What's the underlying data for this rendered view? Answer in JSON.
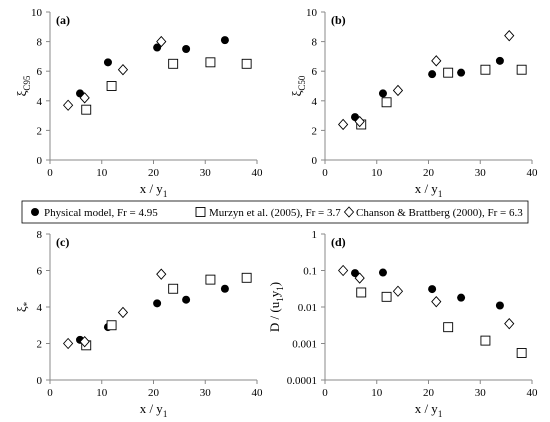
{
  "legend": {
    "items": [
      {
        "label": "Physical model, Fr = 4.95",
        "marker": "circle"
      },
      {
        "label": "Murzyn et al. (2005), Fr = 3.7",
        "marker": "square"
      },
      {
        "label": "Chanson & Brattberg (2000), Fr = 6.3",
        "marker": "diamond"
      }
    ]
  },
  "colors": {
    "physical": "#000000",
    "outline": "#000000",
    "axis": "#888888"
  },
  "chart_data": [
    {
      "id": "a",
      "panel_label": "(a)",
      "type": "scatter",
      "xlabel": "x / y",
      "xlabel_sub": "1",
      "ylabel": "ξ",
      "ylabel_sub": "C95",
      "xlim": [
        0,
        40
      ],
      "ylim": [
        0,
        10
      ],
      "yscale": "linear",
      "xticks": [
        "0",
        "10",
        "20",
        "30",
        "40"
      ],
      "yticks": [
        "0",
        "2",
        "4",
        "6",
        "8",
        "10"
      ],
      "series": [
        {
          "name": "Physical model, Fr = 4.95",
          "marker": "circle",
          "points": [
            [
              5.8,
              4.5
            ],
            [
              11.2,
              6.6
            ],
            [
              20.7,
              7.6
            ],
            [
              26.3,
              7.5
            ],
            [
              33.8,
              8.1
            ]
          ]
        },
        {
          "name": "Murzyn et al. (2005), Fr = 3.7",
          "marker": "square",
          "points": [
            [
              7,
              3.4
            ],
            [
              11.9,
              5.0
            ],
            [
              23.8,
              6.5
            ],
            [
              31,
              6.6
            ],
            [
              38,
              6.5
            ]
          ]
        },
        {
          "name": "Chanson & Brattberg (2000), Fr = 6.3",
          "marker": "diamond",
          "points": [
            [
              3.5,
              3.7
            ],
            [
              6.7,
              4.2
            ],
            [
              14.1,
              6.1
            ],
            [
              21.5,
              8.0
            ]
          ]
        }
      ]
    },
    {
      "id": "b",
      "panel_label": "(b)",
      "type": "scatter",
      "xlabel": "x / y",
      "xlabel_sub": "1",
      "ylabel": "ξ",
      "ylabel_sub": "C50",
      "xlim": [
        0,
        40
      ],
      "ylim": [
        0,
        10
      ],
      "yscale": "linear",
      "xticks": [
        "0",
        "10",
        "20",
        "30",
        "40"
      ],
      "yticks": [
        "0",
        "2",
        "4",
        "6",
        "8",
        "10"
      ],
      "series": [
        {
          "name": "Physical model, Fr = 4.95",
          "marker": "circle",
          "points": [
            [
              5.8,
              2.9
            ],
            [
              11.2,
              4.5
            ],
            [
              20.7,
              5.8
            ],
            [
              26.3,
              5.9
            ],
            [
              33.8,
              6.7
            ]
          ]
        },
        {
          "name": "Murzyn et al. (2005), Fr = 3.7",
          "marker": "square",
          "points": [
            [
              7,
              2.4
            ],
            [
              11.9,
              3.9
            ],
            [
              23.8,
              5.9
            ],
            [
              31,
              6.1
            ],
            [
              38,
              6.1
            ]
          ]
        },
        {
          "name": "Chanson & Brattberg (2000), Fr = 6.3",
          "marker": "diamond",
          "points": [
            [
              3.5,
              2.4
            ],
            [
              6.7,
              2.6
            ],
            [
              14.1,
              4.7
            ],
            [
              21.5,
              6.7
            ],
            [
              35.6,
              8.4
            ]
          ]
        }
      ]
    },
    {
      "id": "c",
      "panel_label": "(c)",
      "type": "scatter",
      "xlabel": "x / y",
      "xlabel_sub": "1",
      "ylabel": "ξ",
      "ylabel_sub": "*",
      "xlim": [
        0,
        40
      ],
      "ylim": [
        0,
        8
      ],
      "yscale": "linear",
      "xticks": [
        "0",
        "10",
        "20",
        "30",
        "40"
      ],
      "yticks": [
        "0",
        "2",
        "4",
        "6",
        "8"
      ],
      "series": [
        {
          "name": "Physical model, Fr = 4.95",
          "marker": "circle",
          "points": [
            [
              5.8,
              2.2
            ],
            [
              11.2,
              2.9
            ],
            [
              20.7,
              4.2
            ],
            [
              26.3,
              4.4
            ],
            [
              33.8,
              5.0
            ]
          ]
        },
        {
          "name": "Murzyn et al. (2005), Fr = 3.7",
          "marker": "square",
          "points": [
            [
              7,
              1.9
            ],
            [
              11.9,
              3.0
            ],
            [
              23.8,
              5.0
            ],
            [
              31,
              5.5
            ],
            [
              38,
              5.6
            ]
          ]
        },
        {
          "name": "Chanson & Brattberg (2000), Fr = 6.3",
          "marker": "diamond",
          "points": [
            [
              3.5,
              2.0
            ],
            [
              6.7,
              2.1
            ],
            [
              14.1,
              3.7
            ],
            [
              21.5,
              5.8
            ]
          ]
        }
      ]
    },
    {
      "id": "d",
      "panel_label": "(d)",
      "type": "scatter",
      "xlabel": "x / y",
      "xlabel_sub": "1",
      "ylabel": "D / (u",
      "ylabel_sub": "1",
      "ylabel_tail": "y",
      "ylabel_sub2": "1",
      "ylabel_end": ")",
      "xlim": [
        0,
        40
      ],
      "ylim": [
        0.0001,
        1
      ],
      "yscale": "log",
      "xticks": [
        "0",
        "10",
        "20",
        "30",
        "40"
      ],
      "yticks": [
        "0.0001",
        "0.001",
        "0.01",
        "0.1",
        "1"
      ],
      "series": [
        {
          "name": "Physical model, Fr = 4.95",
          "marker": "circle",
          "points": [
            [
              5.8,
              0.085
            ],
            [
              11.2,
              0.088
            ],
            [
              20.7,
              0.031
            ],
            [
              26.3,
              0.018
            ],
            [
              33.8,
              0.011
            ]
          ]
        },
        {
          "name": "Murzyn et al. (2005), Fr = 3.7",
          "marker": "square",
          "points": [
            [
              7,
              0.025
            ],
            [
              11.9,
              0.019
            ],
            [
              23.8,
              0.0028
            ],
            [
              31,
              0.0012
            ],
            [
              38,
              0.00055
            ]
          ]
        },
        {
          "name": "Chanson & Brattberg (2000), Fr = 6.3",
          "marker": "diamond",
          "points": [
            [
              3.5,
              0.1
            ],
            [
              6.7,
              0.062
            ],
            [
              14.1,
              0.027
            ],
            [
              21.5,
              0.014
            ],
            [
              35.6,
              0.0035
            ]
          ]
        }
      ]
    }
  ]
}
